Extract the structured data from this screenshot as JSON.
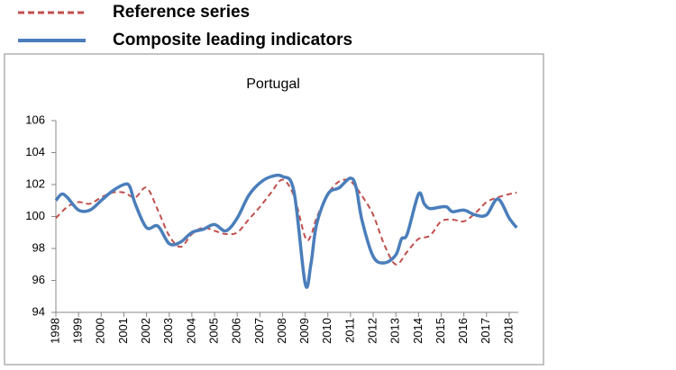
{
  "chart_data": {
    "type": "line",
    "title": "Portugal",
    "xlim": [
      1998,
      2018.4
    ],
    "xticks": [
      1998,
      1999,
      2000,
      2001,
      2002,
      2003,
      2004,
      2005,
      2006,
      2007,
      2008,
      2009,
      2010,
      2011,
      2012,
      2013,
      2014,
      2015,
      2016,
      2017,
      2018
    ],
    "ylim": [
      94,
      106
    ],
    "yticks": [
      94,
      96,
      98,
      100,
      102,
      104,
      106
    ],
    "legend": "top-left",
    "series": [
      {
        "name": "Reference series",
        "color": "#c0504d",
        "dash": true,
        "x": [
          1998,
          1998.5,
          1999,
          1999.5,
          2000,
          2000.5,
          2001,
          2001.5,
          2002,
          2002.5,
          2003,
          2003.5,
          2004,
          2004.5,
          2005,
          2005.5,
          2006,
          2006.5,
          2007,
          2007.5,
          2008,
          2008.5,
          2009,
          2009.25,
          2009.5,
          2010,
          2010.5,
          2011,
          2011.5,
          2012,
          2012.5,
          2013,
          2013.5,
          2014,
          2014.5,
          2015,
          2015.5,
          2016,
          2016.5,
          2017,
          2017.5,
          2018,
          2018.33
        ],
        "values": [
          99.9,
          100.6,
          100.9,
          100.8,
          101.2,
          101.5,
          101.5,
          101.2,
          101.8,
          100.4,
          98.8,
          98.1,
          98.9,
          99.3,
          99.1,
          98.9,
          99.0,
          99.8,
          100.6,
          101.5,
          102.3,
          101.3,
          98.7,
          98.8,
          99.9,
          101.4,
          102.2,
          102.2,
          101.3,
          100.1,
          98.2,
          97.0,
          97.8,
          98.6,
          98.8,
          99.7,
          99.8,
          99.7,
          100.2,
          100.9,
          101.2,
          101.4,
          101.5
        ]
      },
      {
        "name": "Composite leading indicators",
        "color": "#4a7ebb",
        "dash": false,
        "x": [
          1998,
          1998.25,
          1998.5,
          1999,
          1999.5,
          2000,
          2000.5,
          2001,
          2001.25,
          2001.5,
          2002,
          2002.5,
          2003,
          2003.5,
          2004,
          2004.5,
          2005,
          2005.5,
          2006,
          2006.5,
          2007,
          2007.5,
          2008,
          2008.5,
          2009,
          2009.25,
          2009.5,
          2010,
          2010.5,
          2011,
          2011.25,
          2011.5,
          2012,
          2012.5,
          2013,
          2013.25,
          2013.5,
          2014,
          2014.25,
          2014.5,
          2015,
          2015.25,
          2015.5,
          2016,
          2016.5,
          2017,
          2017.5,
          2018,
          2018.33
        ],
        "values": [
          101.0,
          101.4,
          101.2,
          100.4,
          100.4,
          101.0,
          101.6,
          102.0,
          101.9,
          100.8,
          99.3,
          99.4,
          98.3,
          98.4,
          99.0,
          99.2,
          99.5,
          99.1,
          99.9,
          101.3,
          102.1,
          102.5,
          102.5,
          101.6,
          95.8,
          97.0,
          99.5,
          101.4,
          101.8,
          102.4,
          101.8,
          99.8,
          97.5,
          97.1,
          97.6,
          98.6,
          98.9,
          101.4,
          100.8,
          100.5,
          100.6,
          100.6,
          100.3,
          100.4,
          100.1,
          100.1,
          101.1,
          99.9,
          99.3
        ]
      }
    ]
  }
}
